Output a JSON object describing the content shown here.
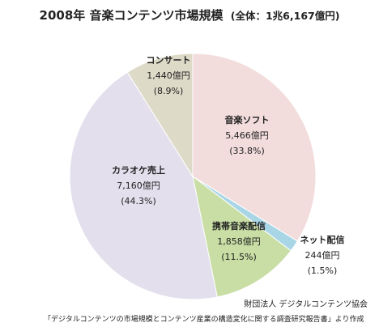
{
  "header": {
    "title": "2008年 音楽コンテンツ市場規模",
    "subtitle": "(全体：1兆6,167億円)"
  },
  "footer": {
    "source_org": "財団法人 デジタルコンテンツ協会",
    "source_report": "「デジタルコンテンツの市場規模とコンテンツ産業の構造変化に関する調査研究報告書」より作成"
  },
  "chart_data": {
    "type": "pie",
    "title": "2008年 音楽コンテンツ市場規模",
    "subtitle": "(全体：1兆6,167億円)",
    "slices": [
      {
        "name": "音楽ソフト",
        "value": 5466,
        "value_label": "5,466億円",
        "pct_label": "(33.8%)",
        "color": "#f2dcdc"
      },
      {
        "name": "ネット配信",
        "value": 244,
        "value_label": "244億円",
        "pct_label": "(1.5%)",
        "color": "#a9d6e6"
      },
      {
        "name": "携帯音楽配信",
        "value": 1858,
        "value_label": "1,858億円",
        "pct_label": "(11.5%)",
        "color": "#c8dea4"
      },
      {
        "name": "カラオケ売上",
        "value": 7160,
        "value_label": "7,160億円",
        "pct_label": "(44.3%)",
        "color": "#e3dfed"
      },
      {
        "name": "コンサート",
        "value": 1440,
        "value_label": "1,440億円",
        "pct_label": "(8.9%)",
        "color": "#dedac8"
      }
    ]
  }
}
